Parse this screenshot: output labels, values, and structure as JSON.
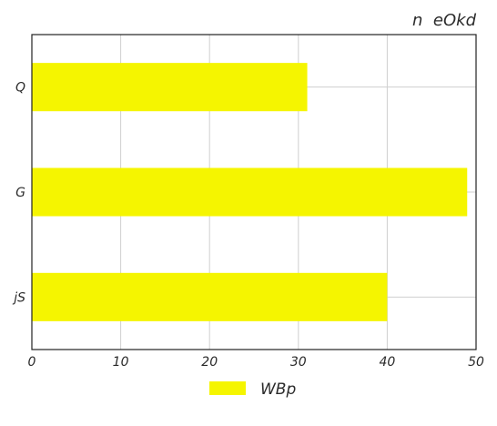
{
  "chart_data": {
    "type": "bar",
    "orientation": "horizontal",
    "title": "n  eOkd",
    "xlabel": "",
    "ylabel": "",
    "categories": [
      "Q",
      "G",
      "jS"
    ],
    "series": [
      {
        "name": "WBp",
        "values": [
          31,
          49,
          40
        ],
        "color": "#f5f500"
      }
    ],
    "xlim": [
      0,
      50
    ],
    "xticks": [
      0,
      10,
      20,
      30,
      40,
      50
    ],
    "grid": true,
    "legend_position": "bottom-center"
  }
}
